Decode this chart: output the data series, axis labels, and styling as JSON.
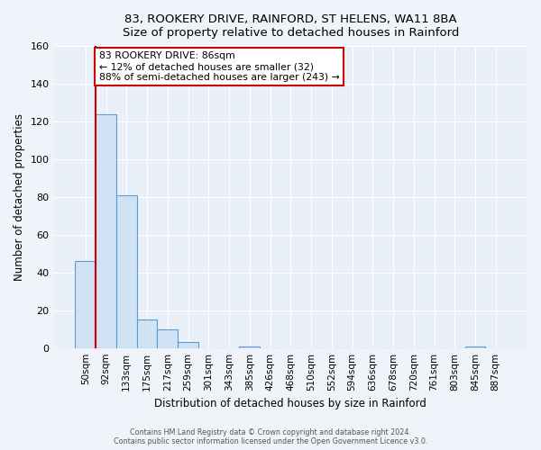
{
  "title1": "83, ROOKERY DRIVE, RAINFORD, ST HELENS, WA11 8BA",
  "title2": "Size of property relative to detached houses in Rainford",
  "xlabel": "Distribution of detached houses by size in Rainford",
  "ylabel": "Number of detached properties",
  "bar_labels": [
    "50sqm",
    "92sqm",
    "133sqm",
    "175sqm",
    "217sqm",
    "259sqm",
    "301sqm",
    "343sqm",
    "385sqm",
    "426sqm",
    "468sqm",
    "510sqm",
    "552sqm",
    "594sqm",
    "636sqm",
    "678sqm",
    "720sqm",
    "761sqm",
    "803sqm",
    "845sqm",
    "887sqm"
  ],
  "bar_values": [
    46,
    124,
    81,
    15,
    10,
    3,
    0,
    0,
    1,
    0,
    0,
    0,
    0,
    0,
    0,
    0,
    0,
    0,
    0,
    1,
    0
  ],
  "bar_face_color": "#d0e2f3",
  "bar_edge_color": "#5b9bd5",
  "vline_color": "#cc0000",
  "annotation_text": "83 ROOKERY DRIVE: 86sqm\n← 12% of detached houses are smaller (32)\n88% of semi-detached houses are larger (243) →",
  "annotation_box_color": "#ffffff",
  "annotation_box_edge": "#cc0000",
  "ylim": [
    0,
    160
  ],
  "yticks": [
    0,
    20,
    40,
    60,
    80,
    100,
    120,
    140,
    160
  ],
  "footer1": "Contains HM Land Registry data © Crown copyright and database right 2024.",
  "footer2": "Contains public sector information licensed under the Open Government Licence v3.0.",
  "bg_color": "#f0f4fa",
  "plot_bg_color": "#eaf0f8",
  "grid_color": "#ffffff",
  "title_fontsize": 9.5,
  "label_fontsize": 8.5,
  "tick_fontsize": 7.5,
  "footer_fontsize": 5.8
}
